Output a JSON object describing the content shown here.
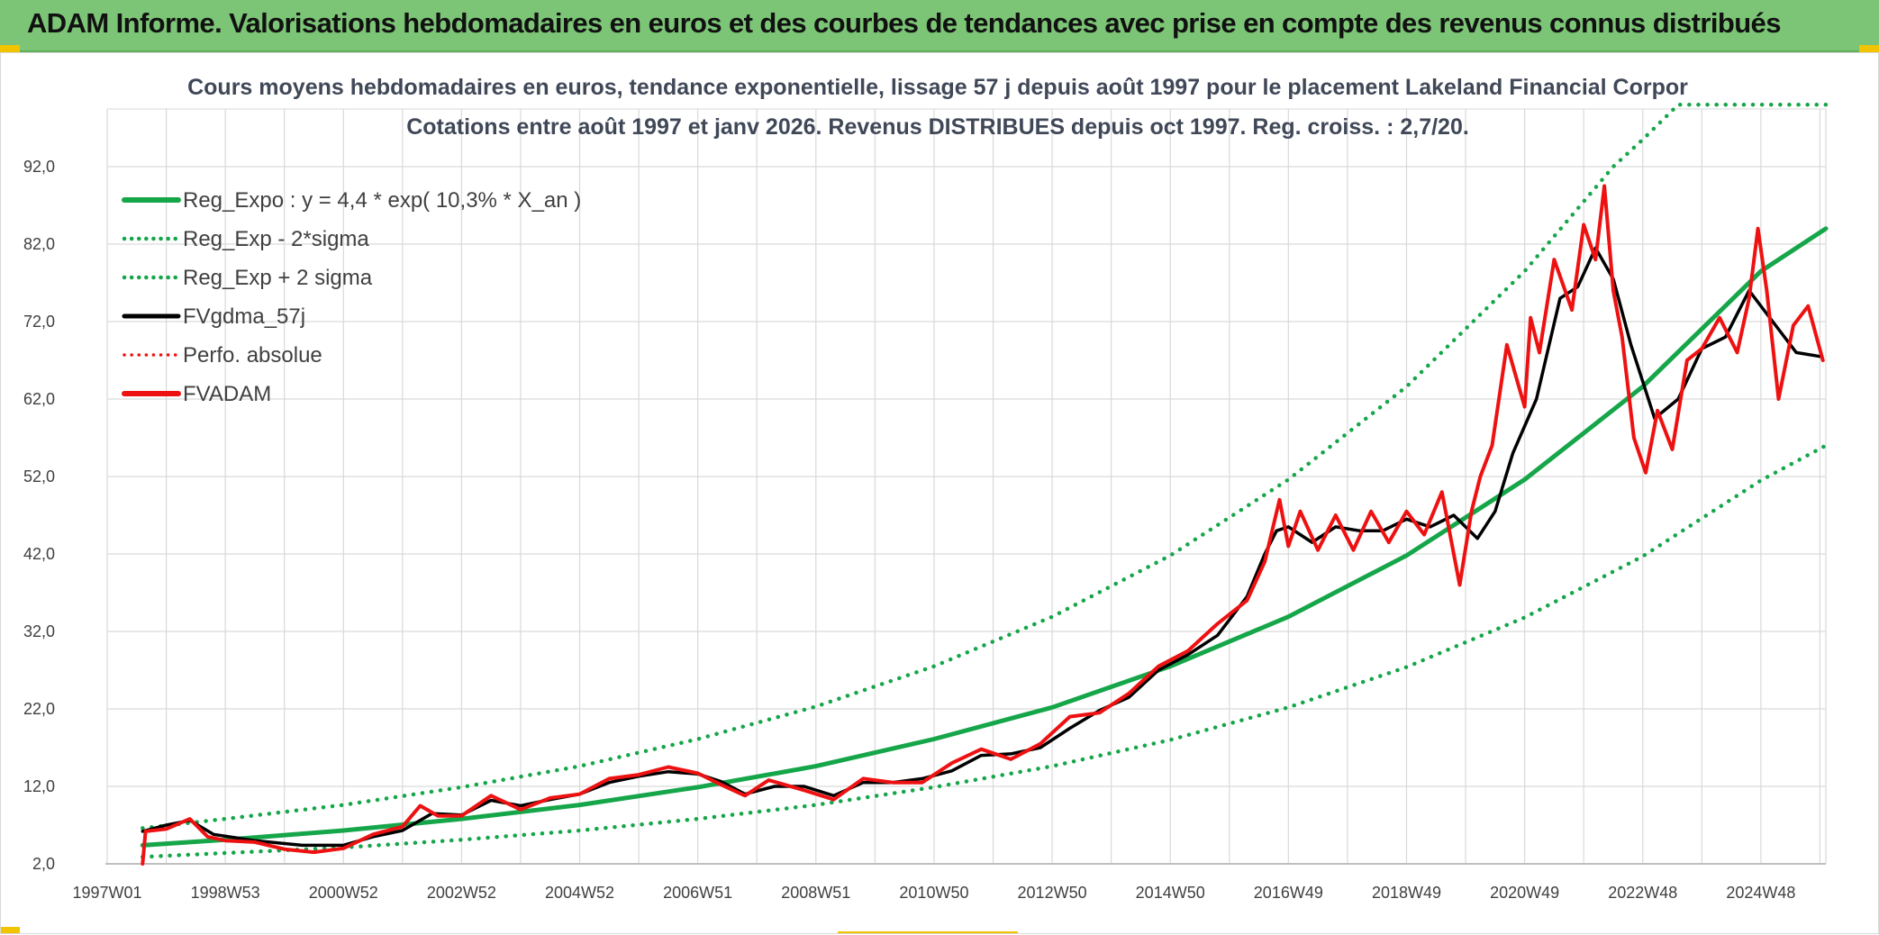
{
  "banner": {
    "title": "ADAM Informe. Valorisations hebdomadaires en euros et des courbes de tendances avec prise en compte des revenus connus distribués"
  },
  "colors": {
    "banner_bg": "#7cc576",
    "trend_green": "#16a64a",
    "series_red": "#ee1111",
    "series_black": "#000000",
    "grid": "#d9d9d9"
  },
  "chart_data": {
    "type": "line",
    "title": "Cours moyens hebdomadaires en euros, tendance exponentielle, lissage 57 j depuis août 1997 pour le placement Lakeland Financial Corpor",
    "subtitle": "Cotations entre août 1997 et janv 2026. Revenus DISTRIBUES depuis oct 1997. Reg. croiss. : 2,7/20.",
    "xlabel": "",
    "ylabel": "",
    "xlim": [
      1997.0,
      2026.1
    ],
    "ylim": [
      2,
      100
    ],
    "y_ticks": [
      "2,0",
      "12,0",
      "22,0",
      "32,0",
      "42,0",
      "52,0",
      "62,0",
      "72,0",
      "82,0",
      "92,0"
    ],
    "x_ticks": [
      "1997W01",
      "1998W53",
      "2000W52",
      "2002W52",
      "2004W52",
      "2006W51",
      "2008W51",
      "2010W50",
      "2012W50",
      "2014W50",
      "2016W49",
      "2018W49",
      "2020W49",
      "2022W48",
      "2024W48"
    ],
    "x_tick_years": [
      1997.0,
      1999.0,
      2001.0,
      2003.0,
      2005.0,
      2007.0,
      2009.0,
      2011.0,
      2013.0,
      2015.0,
      2017.0,
      2019.0,
      2021.0,
      2023.0,
      2025.0
    ],
    "grid": true,
    "legend_position": "top-left",
    "legend": [
      "Reg_Expo : y = 4,4 * exp( 10,3% *  X_an )",
      "Reg_Exp - 2*sigma",
      "Reg_Exp + 2 sigma",
      "FVgdma_57j",
      "Perfo. absolue",
      "FVADAM"
    ],
    "series": [
      {
        "name": "Reg_Expo : y = 4,4 * exp( 10,3% *  X_an )",
        "style": "solid",
        "color": "#16a64a",
        "x": [
          1997.6,
          1999,
          2001,
          2003,
          2005,
          2007,
          2009,
          2011,
          2013,
          2015,
          2017,
          2019,
          2021,
          2023,
          2025,
          2026.1
        ],
        "y": [
          4.4,
          5.1,
          6.3,
          7.8,
          9.6,
          11.9,
          14.6,
          18.1,
          22.2,
          27.5,
          33.9,
          41.8,
          51.6,
          63.6,
          78.5,
          84.0
        ]
      },
      {
        "name": "Reg_Exp - 2*sigma",
        "style": "dotted",
        "color": "#16a64a",
        "x": [
          1997.6,
          1999,
          2001,
          2003,
          2005,
          2007,
          2009,
          2011,
          2013,
          2015,
          2017,
          2019,
          2021,
          2023,
          2025,
          2026.1
        ],
        "y": [
          2.9,
          3.4,
          4.1,
          5.1,
          6.3,
          7.8,
          9.6,
          11.9,
          14.6,
          18.0,
          22.2,
          27.4,
          33.8,
          41.7,
          51.5,
          56.0
        ]
      },
      {
        "name": "Reg_Exp + 2 sigma",
        "style": "dotted",
        "color": "#16a64a",
        "x": [
          1997.6,
          1999,
          2001,
          2003,
          2005,
          2007,
          2009,
          2011,
          2013,
          2015,
          2017,
          2019,
          2021,
          2022.5,
          2023,
          2023.6,
          2026.1
        ],
        "y": [
          6.6,
          7.8,
          9.6,
          11.9,
          14.6,
          18.1,
          22.3,
          27.5,
          33.9,
          41.8,
          51.6,
          63.6,
          78.5,
          92.0,
          95.5,
          100.0,
          100.0
        ]
      },
      {
        "name": "FVgdma_57j",
        "style": "solid",
        "color": "#000000",
        "x": [
          1997.6,
          1998,
          1998.4,
          1998.8,
          1999.5,
          2000.3,
          2001,
          2001.5,
          2002,
          2002.5,
          2003,
          2003.5,
          2004,
          2004.5,
          2005,
          2005.5,
          2006,
          2006.5,
          2007,
          2007.4,
          2007.8,
          2008.3,
          2008.8,
          2009.3,
          2009.8,
          2010.3,
          2010.8,
          2011.3,
          2011.8,
          2012.3,
          2012.8,
          2013.3,
          2013.8,
          2014.3,
          2014.8,
          2015.3,
          2015.8,
          2016.3,
          2016.6,
          2016.8,
          2017.0,
          2017.4,
          2017.8,
          2018.2,
          2018.6,
          2019.0,
          2019.4,
          2019.8,
          2020.2,
          2020.5,
          2020.8,
          2021.2,
          2021.6,
          2021.9,
          2022.2,
          2022.5,
          2022.8,
          2023.2,
          2023.6,
          2024.0,
          2024.4,
          2024.8,
          2025.2,
          2025.6,
          2026.0
        ],
        "y": [
          6.2,
          7.0,
          7.6,
          5.8,
          5.0,
          4.4,
          4.4,
          5.5,
          6.3,
          8.5,
          8.3,
          10.2,
          9.5,
          10.3,
          11.0,
          12.5,
          13.3,
          13.9,
          13.6,
          12.6,
          11.0,
          12.0,
          12.0,
          10.8,
          12.5,
          12.5,
          13.0,
          14.0,
          16.0,
          16.2,
          17.0,
          19.5,
          21.8,
          23.5,
          27.0,
          29.0,
          31.5,
          36.5,
          42.0,
          45.0,
          45.5,
          43.5,
          45.5,
          45.0,
          45.0,
          46.5,
          45.5,
          47.0,
          44.0,
          47.5,
          55.0,
          62.0,
          75.0,
          76.5,
          81.5,
          77.5,
          69.0,
          59.5,
          62.0,
          68.5,
          70.0,
          76.0,
          72.0,
          68.0,
          67.5
        ]
      },
      {
        "name": "FVADAM",
        "style": "solid",
        "color": "#ee1111",
        "x": [
          1997.6,
          1997.65,
          1998,
          1998.4,
          1998.7,
          1999,
          1999.5,
          2000,
          2000.5,
          2001,
          2001.5,
          2002,
          2002.3,
          2002.6,
          2003,
          2003.5,
          2004,
          2004.5,
          2005,
          2005.5,
          2006,
          2006.5,
          2007,
          2007.4,
          2007.8,
          2008.2,
          2008.8,
          2009.3,
          2009.8,
          2010.3,
          2010.8,
          2011.3,
          2011.8,
          2012.3,
          2012.8,
          2013.3,
          2013.8,
          2014.3,
          2014.8,
          2015.3,
          2015.8,
          2016.3,
          2016.6,
          2016.85,
          2017.0,
          2017.2,
          2017.5,
          2017.8,
          2018.1,
          2018.4,
          2018.7,
          2019.0,
          2019.3,
          2019.6,
          2019.9,
          2020.1,
          2020.25,
          2020.45,
          2020.7,
          2021.0,
          2021.1,
          2021.25,
          2021.5,
          2021.8,
          2022.0,
          2022.2,
          2022.35,
          2022.5,
          2022.65,
          2022.85,
          2023.05,
          2023.25,
          2023.5,
          2023.75,
          2024.0,
          2024.3,
          2024.6,
          2024.8,
          2024.95,
          2025.1,
          2025.3,
          2025.55,
          2025.8,
          2026.05
        ],
        "y": [
          2.0,
          6.2,
          6.5,
          7.8,
          5.5,
          5.0,
          4.8,
          3.9,
          3.5,
          4.0,
          5.8,
          6.8,
          9.5,
          8.2,
          8.2,
          10.8,
          9.0,
          10.5,
          11.0,
          13.0,
          13.5,
          14.5,
          13.7,
          12.2,
          10.8,
          12.8,
          11.5,
          10.3,
          13.0,
          12.5,
          12.5,
          15.0,
          16.8,
          15.5,
          17.5,
          21.0,
          21.5,
          24.0,
          27.5,
          29.5,
          33.0,
          36.0,
          41.0,
          49.0,
          43.0,
          47.5,
          42.5,
          47.0,
          42.5,
          47.5,
          43.5,
          47.5,
          44.5,
          50.0,
          38.0,
          47.5,
          52.0,
          56.0,
          69.0,
          61.0,
          72.5,
          68.0,
          80.0,
          73.5,
          84.5,
          80.0,
          89.5,
          76.0,
          70.0,
          57.0,
          52.5,
          60.5,
          55.5,
          67.0,
          68.5,
          72.5,
          68.0,
          75.0,
          84.0,
          76.0,
          62.0,
          71.5,
          74.0,
          67.0
        ]
      }
    ]
  }
}
